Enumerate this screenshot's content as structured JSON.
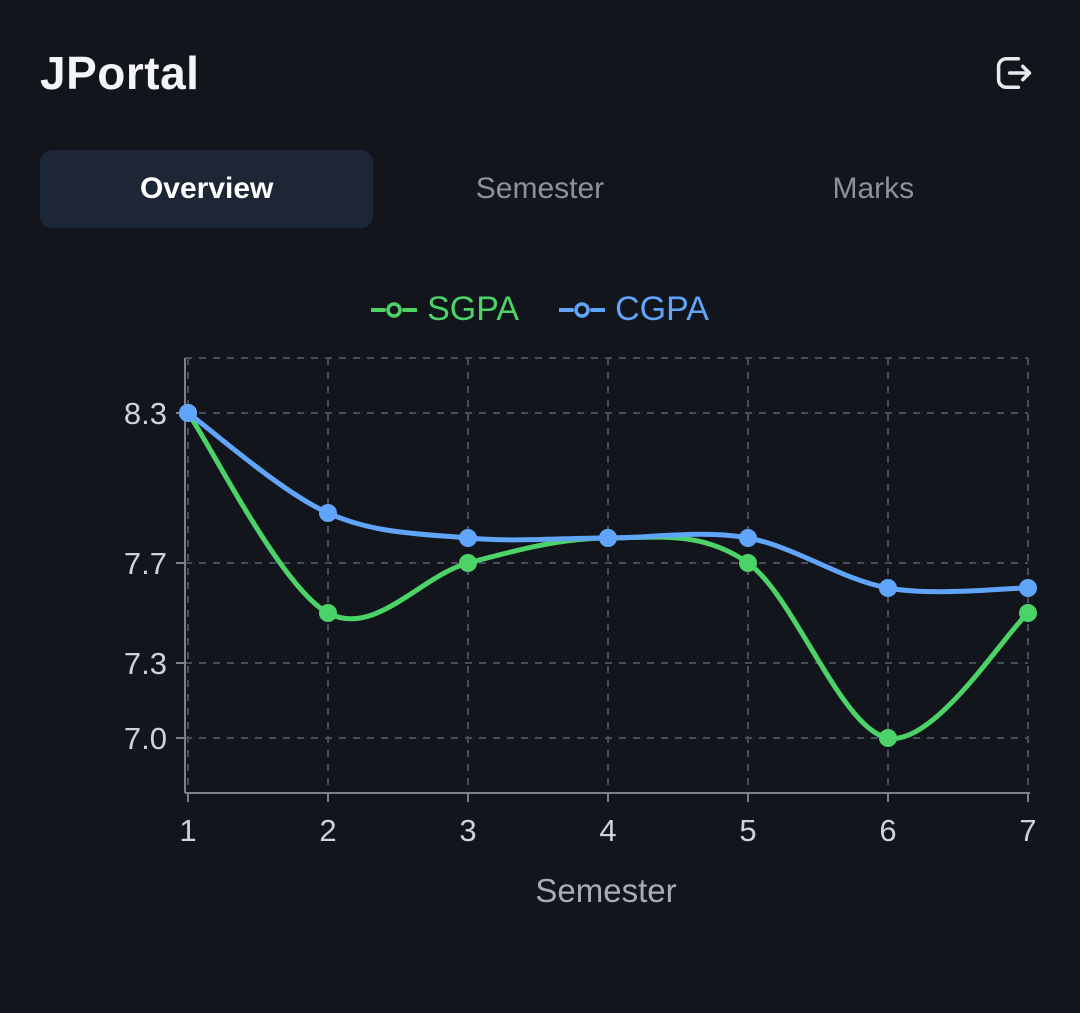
{
  "header": {
    "title": "JPortal",
    "logout_icon": "logout-icon"
  },
  "tabs": [
    {
      "label": "Overview",
      "active": true
    },
    {
      "label": "Semester",
      "active": false
    },
    {
      "label": "Marks",
      "active": false
    }
  ],
  "chart_data": {
    "type": "line",
    "x": [
      1,
      2,
      3,
      4,
      5,
      6,
      7
    ],
    "xlabel": "Semester",
    "series": [
      {
        "name": "SGPA",
        "color": "#4cd368",
        "values": [
          8.3,
          7.5,
          7.7,
          7.8,
          7.7,
          7.0,
          7.5
        ]
      },
      {
        "name": "CGPA",
        "color": "#60a5fa",
        "values": [
          8.3,
          7.9,
          7.8,
          7.8,
          7.8,
          7.6,
          7.6
        ]
      }
    ],
    "yticks": [
      8.3,
      7.7,
      7.3,
      7.0
    ],
    "ylim": [
      6.78,
      8.52
    ],
    "grid": "dashed",
    "legend_position": "top",
    "legend_marker_icon": "line-circle-marker"
  },
  "colors": {
    "background": "#13151c",
    "active_tab_bg": "#1d2634",
    "grid_line": "#454e60",
    "axis_line": "#79818f",
    "tick_label": "#ced3db"
  }
}
